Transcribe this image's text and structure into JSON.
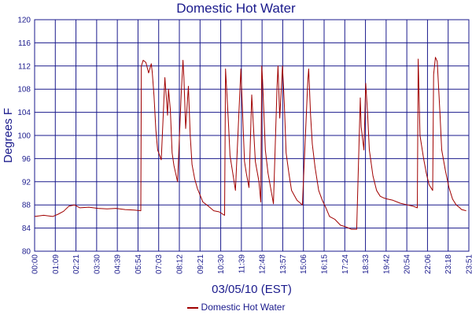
{
  "chart_data": {
    "type": "line",
    "title": "Domestic Hot Water",
    "xlabel": "03/05/10 (EST)",
    "ylabel": "Degrees F",
    "ylim": [
      80,
      120
    ],
    "yticks": [
      80,
      84,
      88,
      92,
      96,
      100,
      104,
      108,
      112,
      116,
      120
    ],
    "xlim_hours": [
      0,
      24
    ],
    "xtick_labels": [
      "00:00",
      "01:09",
      "02:21",
      "03:30",
      "04:39",
      "05:54",
      "07:03",
      "08:12",
      "09:21",
      "10:30",
      "11:39",
      "12:48",
      "13:57",
      "15:06",
      "16:15",
      "17:24",
      "18:33",
      "19:42",
      "20:54",
      "22:06",
      "23:18",
      "23:51"
    ],
    "grid": true,
    "legend": "bottom-center",
    "series": [
      {
        "name": "Domestic Hot Water",
        "color": "#a00000",
        "x_hours": [
          0,
          0.5,
          1.0,
          1.3,
          1.6,
          1.9,
          2.2,
          2.5,
          3.0,
          3.5,
          4.0,
          4.5,
          5.0,
          5.5,
          5.87,
          5.9,
          6.0,
          6.15,
          6.3,
          6.45,
          6.5,
          6.6,
          6.7,
          6.8,
          7.0,
          7.2,
          7.35,
          7.4,
          7.5,
          7.6,
          7.7,
          7.9,
          8.1,
          8.2,
          8.25,
          8.35,
          8.5,
          8.6,
          8.7,
          8.85,
          9.0,
          9.3,
          9.6,
          9.9,
          10.2,
          10.5,
          10.55,
          10.7,
          10.8,
          10.95,
          11.1,
          11.4,
          11.6,
          11.7,
          11.85,
          12.0,
          12.2,
          12.4,
          12.5,
          12.55,
          12.6,
          12.75,
          12.9,
          13.2,
          13.4,
          13.45,
          13.55,
          13.7,
          13.8,
          13.9,
          14.05,
          14.2,
          14.5,
          14.8,
          15.1,
          15.15,
          15.25,
          15.35,
          15.5,
          15.7,
          15.9,
          16.1,
          16.3,
          16.6,
          16.9,
          17.2,
          17.5,
          17.8,
          18.0,
          18.05,
          18.2,
          18.3,
          18.4,
          18.5,
          18.7,
          18.9,
          19.1,
          19.3,
          19.5,
          19.8,
          20.2,
          20.6,
          20.9,
          21.15,
          21.2,
          21.3,
          21.5,
          21.65,
          21.8,
          22.0,
          22.05,
          22.15,
          22.25,
          22.4,
          22.5,
          22.7,
          22.9,
          23.1,
          23.3,
          23.5,
          23.6,
          23.85
        ],
        "values": [
          86.0,
          86.2,
          86.0,
          86.4,
          86.9,
          87.8,
          88.0,
          87.5,
          87.6,
          87.4,
          87.3,
          87.4,
          87.2,
          87.1,
          87.0,
          112.0,
          113.0,
          112.6,
          110.8,
          112.4,
          111.0,
          106.8,
          101.0,
          97.5,
          95.8,
          110.0,
          103.5,
          108.0,
          104.5,
          97.0,
          94.8,
          92.0,
          107.0,
          113.0,
          110.0,
          101.2,
          108.5,
          100.0,
          95.0,
          92.5,
          90.8,
          88.5,
          87.8,
          87.0,
          86.8,
          86.2,
          111.5,
          103.0,
          96.5,
          93.5,
          90.5,
          111.5,
          95.5,
          93.5,
          91.0,
          107.0,
          95.5,
          92.0,
          88.5,
          112.0,
          109.5,
          97.5,
          93.5,
          88.2,
          108.5,
          112.0,
          103.0,
          112.0,
          105.5,
          97.0,
          93.5,
          90.5,
          88.8,
          88.0,
          109.5,
          111.5,
          103.5,
          98.5,
          94.5,
          90.5,
          88.8,
          87.5,
          86.0,
          85.5,
          84.5,
          84.2,
          83.8,
          83.8,
          106.5,
          101.5,
          97.5,
          109.0,
          104.0,
          97.5,
          93.0,
          90.5,
          89.5,
          89.2,
          89.0,
          88.8,
          88.3,
          88.0,
          87.8,
          87.5,
          113.2,
          100.0,
          96.0,
          93.5,
          91.5,
          90.5,
          110.5,
          113.5,
          112.8,
          104.0,
          97.5,
          94.0,
          91.0,
          89.0,
          88.0,
          87.5,
          87.2,
          87.0
        ]
      }
    ]
  },
  "legend_label": "Domestic Hot Water"
}
